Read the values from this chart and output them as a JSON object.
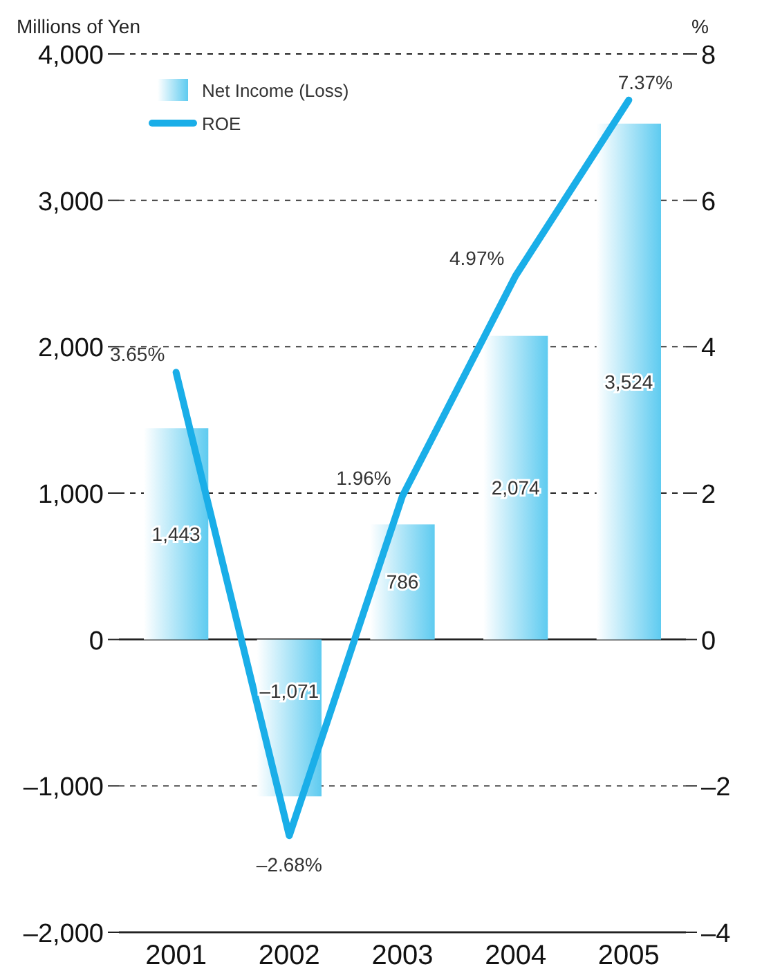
{
  "chart_data": {
    "type": "bar",
    "ylabel": "Millions of Yen",
    "y2label": "%",
    "categories": [
      "2001",
      "2002",
      "2003",
      "2004",
      "2005"
    ],
    "series": [
      {
        "name": "Net Income (Loss)",
        "color": "#5ecbf0",
        "values": [
          1443,
          -1071,
          786,
          2074,
          3524
        ],
        "value_labels": [
          "1,443",
          "–1,071",
          "786",
          "2,074",
          "3,524"
        ]
      },
      {
        "name": "ROE",
        "type": "line",
        "axis": "y2",
        "color": "#1aaee8",
        "values": [
          3.65,
          -2.68,
          1.96,
          4.97,
          7.37
        ],
        "value_labels": [
          "3.65%",
          "–2.68%",
          "1.96%",
          "4.97%",
          "7.37%"
        ]
      }
    ],
    "ylim": [
      -2000,
      4000
    ],
    "yticks": [
      {
        "value": -2000,
        "label": "–2,000"
      },
      {
        "value": -1000,
        "label": "–1,000"
      },
      0,
      {
        "value": 1000,
        "label": "1,000"
      },
      {
        "value": 2000,
        "label": "2,000"
      },
      {
        "value": 3000,
        "label": "3,000"
      },
      {
        "value": 4000,
        "label": "4,000"
      }
    ],
    "y2lim": [
      -4,
      8
    ],
    "y2ticks": [
      {
        "value": -4,
        "label": "–4"
      },
      {
        "value": -2,
        "label": "–2"
      },
      0,
      2,
      4,
      6,
      8
    ],
    "grid": "y",
    "legend": "top left",
    "marker": "none",
    "line_style": "solid"
  }
}
